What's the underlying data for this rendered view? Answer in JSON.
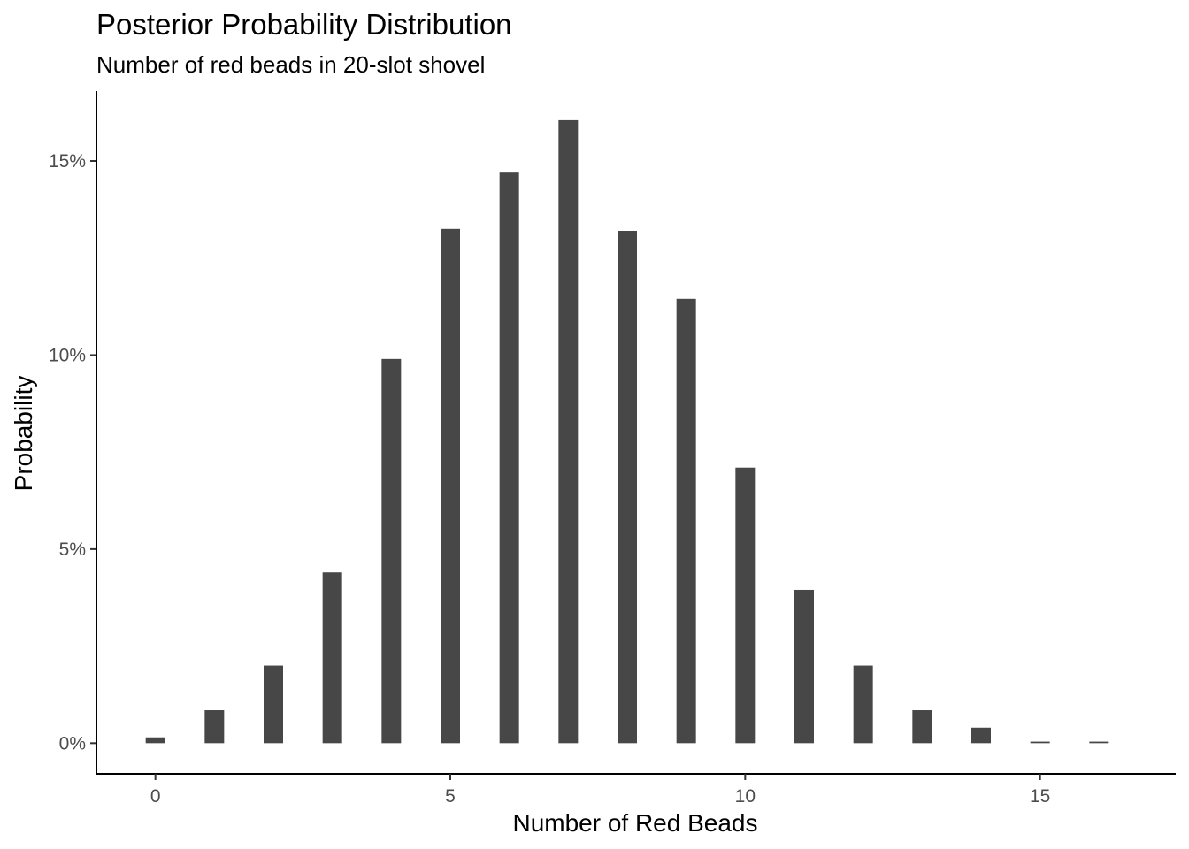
{
  "chart_data": {
    "type": "bar",
    "title": "Posterior Probability Distribution",
    "subtitle": "Number of red beads in 20-slot shovel",
    "xlabel": "Number of Red Beads",
    "ylabel": "Probability",
    "x": [
      0,
      1,
      2,
      3,
      4,
      5,
      6,
      7,
      8,
      9,
      10,
      11,
      12,
      13,
      14,
      15,
      16
    ],
    "values": [
      0.0015,
      0.0085,
      0.02,
      0.044,
      0.099,
      0.1325,
      0.147,
      0.1605,
      0.132,
      0.1145,
      0.071,
      0.0395,
      0.02,
      0.0085,
      0.004,
      0.0004,
      0.0004
    ],
    "xlim": [
      -1,
      17.3
    ],
    "ylim": [
      -0.0079,
      0.168
    ],
    "x_ticks": [
      0,
      5,
      10,
      15
    ],
    "x_tick_labels": [
      "0",
      "5",
      "10",
      "15"
    ],
    "y_ticks": [
      0,
      0.05,
      0.1,
      0.15
    ],
    "y_tick_labels": [
      "0%",
      "5%",
      "10%",
      "15%"
    ],
    "bar_color": "#474747",
    "axis_color": "#000000",
    "tick_label_color": "#4d4d4d",
    "grid": false,
    "legend": "none"
  }
}
